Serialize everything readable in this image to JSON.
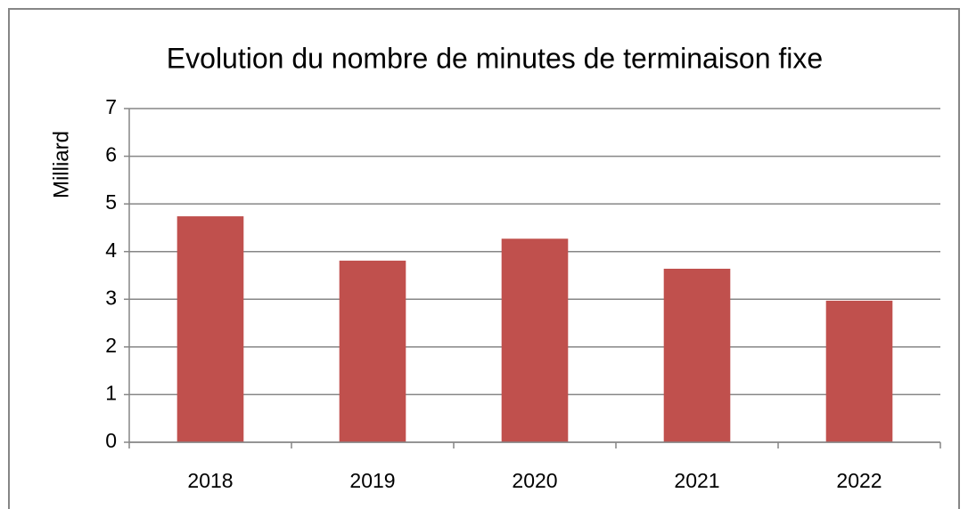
{
  "chart_data": {
    "type": "bar",
    "title": "Evolution du nombre de minutes de terminaison fixe",
    "y_label": "Milliard",
    "categories": [
      "2018",
      "2019",
      "2020",
      "2021",
      "2022"
    ],
    "values": [
      4.74,
      3.81,
      4.27,
      3.64,
      2.97
    ],
    "color": "#c0504d",
    "ylim": [
      0,
      7
    ],
    "yticks": [
      0,
      1,
      2,
      3,
      4,
      5,
      6,
      7
    ],
    "grid": true
  }
}
